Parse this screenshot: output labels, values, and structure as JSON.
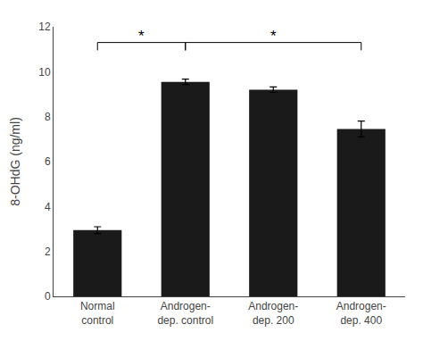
{
  "chart_data": {
    "type": "bar",
    "categories": [
      "Normal\ncontrol",
      "Androgen-\ndep. control",
      "Androgen-\ndep. 200",
      "Androgen-\ndep. 400"
    ],
    "values": [
      2.95,
      9.55,
      9.2,
      7.45
    ],
    "errors": [
      0.15,
      0.12,
      0.12,
      0.35
    ],
    "color": "#1a1a1a",
    "ylabel": "8-OHdG (ng/ml)",
    "ylim": [
      0,
      12
    ],
    "yticks": [
      0,
      2,
      4,
      6,
      8,
      10,
      12
    ],
    "grid": false,
    "brackets": [
      {
        "from": "Normal\ncontrol",
        "to": "Androgen-\ndep. control",
        "label": "*"
      },
      {
        "from": "Androgen-\ndep. control",
        "to": "Androgen-\ndep. 400",
        "label": "*"
      }
    ],
    "bracket_y": 11.3,
    "bracket_drop": 0.35
  }
}
